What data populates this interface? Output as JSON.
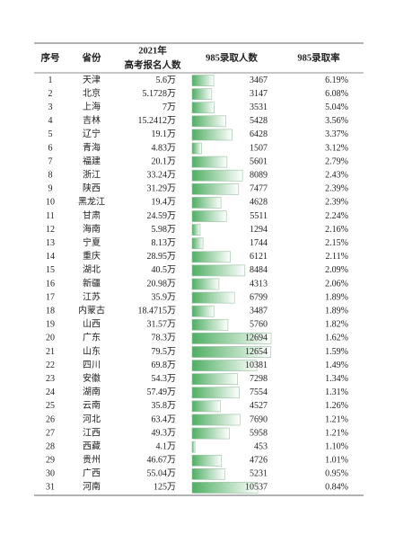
{
  "table": {
    "header": [
      "序号",
      "省份",
      [
        "2021年",
        "高考报名人数"
      ],
      "985录取人数",
      "985录取率"
    ],
    "rows": [
      [
        1,
        "天津",
        "5.6万",
        3467,
        "6.19%"
      ],
      [
        2,
        "北京",
        "5.1728万",
        3147,
        "6.08%"
      ],
      [
        3,
        "上海",
        "7万",
        3531,
        "5.04%"
      ],
      [
        4,
        "吉林",
        "15.2412万",
        5428,
        "3.56%"
      ],
      [
        5,
        "辽宁",
        "19.1万",
        6428,
        "3.37%"
      ],
      [
        6,
        "青海",
        "4.83万",
        1507,
        "3.12%"
      ],
      [
        7,
        "福建",
        "20.1万",
        5601,
        "2.79%"
      ],
      [
        8,
        "浙江",
        "33.24万",
        8089,
        "2.43%"
      ],
      [
        9,
        "陕西",
        "31.29万",
        7477,
        "2.39%"
      ],
      [
        10,
        "黑龙江",
        "19.4万",
        4628,
        "2.39%"
      ],
      [
        11,
        "甘肃",
        "24.59万",
        5511,
        "2.24%"
      ],
      [
        12,
        "海南",
        "5.98万",
        1294,
        "2.16%"
      ],
      [
        13,
        "宁夏",
        "8.13万",
        1744,
        "2.15%"
      ],
      [
        14,
        "重庆",
        "28.95万",
        6121,
        "2.11%"
      ],
      [
        15,
        "湖北",
        "40.5万",
        8484,
        "2.09%"
      ],
      [
        16,
        "新疆",
        "20.98万",
        4313,
        "2.06%"
      ],
      [
        17,
        "江苏",
        "35.9万",
        6799,
        "1.89%"
      ],
      [
        18,
        "内蒙古",
        "18.4715万",
        3487,
        "1.89%"
      ],
      [
        19,
        "山西",
        "31.57万",
        5760,
        "1.82%"
      ],
      [
        20,
        "广东",
        "78.3万",
        12694,
        "1.62%"
      ],
      [
        21,
        "山东",
        "79.5万",
        12654,
        "1.59%"
      ],
      [
        22,
        "四川",
        "69.8万",
        10381,
        "1.49%"
      ],
      [
        23,
        "安徽",
        "54.3万",
        7298,
        "1.34%"
      ],
      [
        24,
        "湖南",
        "57.49万",
        7554,
        "1.31%"
      ],
      [
        25,
        "云南",
        "35.8万",
        4527,
        "1.26%"
      ],
      [
        26,
        "河北",
        "63.4万",
        7690,
        "1.21%"
      ],
      [
        27,
        "江西",
        "49.3万",
        5958,
        "1.21%"
      ],
      [
        28,
        "西藏",
        "4.1万",
        453,
        "1.10%"
      ],
      [
        29,
        "贵州",
        "46.67万",
        4726,
        "1.01%"
      ],
      [
        30,
        "广西",
        "55.04万",
        5231,
        "0.95%"
      ],
      [
        31,
        "河南",
        "125万",
        10537,
        "0.84%"
      ]
    ]
  }
}
